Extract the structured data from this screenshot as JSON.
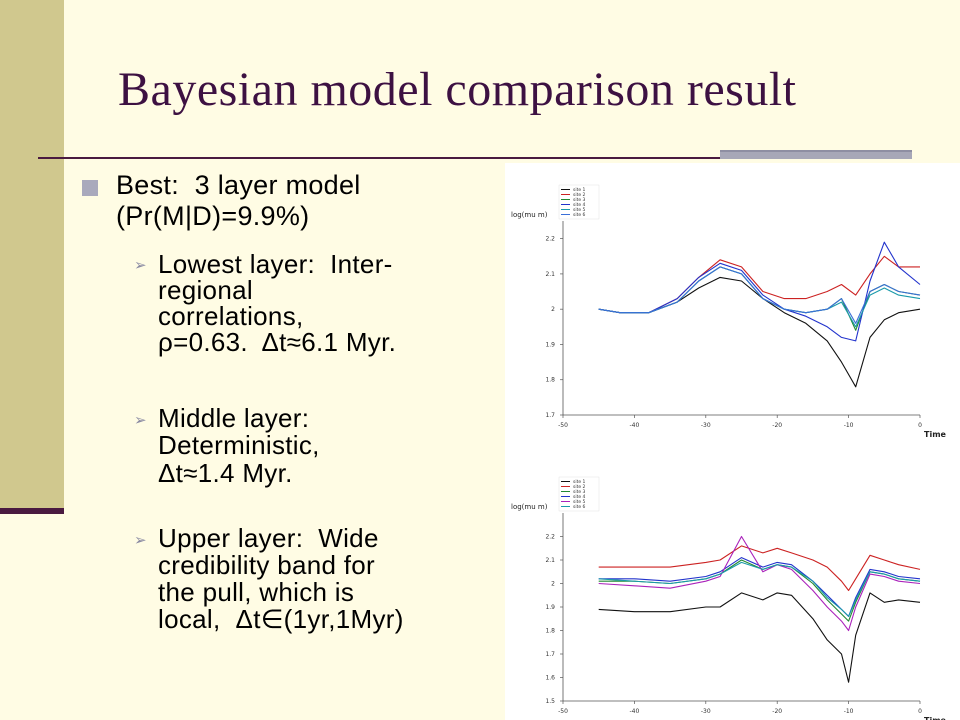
{
  "slide": {
    "title": "Bayesian model comparison result",
    "bullets": [
      {
        "lines": [
          "Best:  3 layer model",
          "(Pr(M|D)=9.9%)"
        ],
        "subbullets": [
          {
            "lines": [
              "Lowest layer:  Inter-",
              "regional",
              "correlations,",
              "ρ=0.63.  Δt≈6.1 Myr."
            ]
          },
          {
            "lines": [
              "Middle layer:",
              "Deterministic,",
              "Δt≈1.4 Myr."
            ]
          },
          {
            "lines": [
              "Upper layer:  Wide",
              "credibility band for",
              "the pull, which is",
              "local,  Δt∈(1yr,1Myr)"
            ]
          }
        ]
      }
    ]
  },
  "chart_data": [
    {
      "type": "line",
      "ylabel": "log(mu m)",
      "xlabel": "Time",
      "x_ticks": [
        "-50",
        "-40",
        "-30",
        "-20",
        "-10",
        "0"
      ],
      "y_ticks": [
        "2.2",
        "2.1",
        "2",
        "1.9",
        "1.8",
        "1.7"
      ],
      "xlim": [
        -50,
        0
      ],
      "ylim": [
        1.7,
        2.25
      ],
      "legend_position": "top-left",
      "series": [
        {
          "name": "site 1",
          "color": "#111111",
          "x": [
            -45,
            -42,
            -38,
            -34,
            -31,
            -28,
            -25,
            -22,
            -19,
            -16,
            -13,
            -11,
            -9,
            -7,
            -5,
            -3,
            0
          ],
          "y": [
            2.0,
            1.99,
            1.99,
            2.02,
            2.06,
            2.09,
            2.08,
            2.03,
            1.99,
            1.96,
            1.91,
            1.85,
            1.78,
            1.92,
            1.97,
            1.99,
            2.0
          ]
        },
        {
          "name": "site 2",
          "color": "#cc2222",
          "x": [
            -45,
            -42,
            -38,
            -34,
            -31,
            -28,
            -25,
            -22,
            -19,
            -16,
            -13,
            -11,
            -9,
            -7,
            -5,
            -3,
            0
          ],
          "y": [
            2.0,
            1.99,
            1.99,
            2.03,
            2.09,
            2.14,
            2.12,
            2.05,
            2.03,
            2.03,
            2.05,
            2.07,
            2.04,
            2.1,
            2.15,
            2.12,
            2.12
          ]
        },
        {
          "name": "site 3",
          "color": "#228833",
          "x": [
            -45,
            -42,
            -38,
            -34,
            -31,
            -28,
            -25,
            -22,
            -19,
            -16,
            -13,
            -11,
            -9,
            -7,
            -5,
            -3,
            0
          ],
          "y": [
            2.0,
            1.99,
            1.99,
            2.02,
            2.08,
            2.12,
            2.1,
            2.03,
            2.0,
            1.99,
            2.0,
            2.03,
            1.94,
            2.05,
            2.07,
            2.05,
            2.04
          ]
        },
        {
          "name": "site 4",
          "color": "#2233cc",
          "x": [
            -45,
            -42,
            -38,
            -34,
            -31,
            -28,
            -25,
            -22,
            -19,
            -16,
            -13,
            -11,
            -9,
            -7,
            -5,
            -3,
            0
          ],
          "y": [
            2.0,
            1.99,
            1.99,
            2.03,
            2.09,
            2.13,
            2.11,
            2.04,
            2.0,
            1.98,
            1.95,
            1.92,
            1.91,
            2.08,
            2.19,
            2.12,
            2.07
          ]
        },
        {
          "name": "site 5",
          "color": "#1a9aaa",
          "x": [
            -45,
            -42,
            -38,
            -34,
            -31,
            -28,
            -25,
            -22,
            -19,
            -16,
            -13,
            -11,
            -9,
            -7,
            -5,
            -3,
            0
          ],
          "y": [
            2.0,
            1.99,
            1.99,
            2.02,
            2.08,
            2.12,
            2.1,
            2.03,
            2.0,
            1.99,
            2.0,
            2.02,
            1.95,
            2.04,
            2.06,
            2.04,
            2.03
          ]
        },
        {
          "name": "site 6",
          "color": "#3a6fd8",
          "x": [
            -45,
            -42,
            -38,
            -34,
            -31,
            -28,
            -25,
            -22,
            -19,
            -16,
            -13,
            -11,
            -9,
            -7,
            -5,
            -3,
            0
          ],
          "y": [
            2.0,
            1.99,
            1.99,
            2.02,
            2.08,
            2.12,
            2.1,
            2.03,
            2.0,
            1.99,
            2.0,
            2.03,
            1.96,
            2.05,
            2.07,
            2.05,
            2.04
          ]
        }
      ]
    },
    {
      "type": "line",
      "ylabel": "log(mu m)",
      "xlabel": "Time",
      "x_ticks": [
        "-50",
        "-40",
        "-30",
        "-20",
        "-10",
        "0"
      ],
      "y_ticks": [
        "2.2",
        "2.1",
        "2",
        "1.9",
        "1.8",
        "1.7",
        "1.6",
        "1.5"
      ],
      "xlim": [
        -50,
        0
      ],
      "ylim": [
        1.5,
        2.3
      ],
      "legend_position": "top-left",
      "series": [
        {
          "name": "site 1",
          "color": "#111111",
          "x": [
            -45,
            -40,
            -35,
            -30,
            -28,
            -25,
            -22,
            -20,
            -18,
            -15,
            -13,
            -11,
            -10,
            -9,
            -7,
            -5,
            -3,
            0
          ],
          "y": [
            1.89,
            1.88,
            1.88,
            1.9,
            1.9,
            1.96,
            1.93,
            1.96,
            1.95,
            1.85,
            1.76,
            1.7,
            1.58,
            1.78,
            1.96,
            1.92,
            1.93,
            1.92
          ]
        },
        {
          "name": "site 2",
          "color": "#cc2222",
          "x": [
            -45,
            -40,
            -35,
            -30,
            -28,
            -25,
            -22,
            -20,
            -18,
            -15,
            -13,
            -11,
            -10,
            -9,
            -7,
            -5,
            -3,
            0
          ],
          "y": [
            2.07,
            2.07,
            2.07,
            2.09,
            2.1,
            2.16,
            2.13,
            2.15,
            2.13,
            2.1,
            2.07,
            2.01,
            1.97,
            2.02,
            2.12,
            2.1,
            2.08,
            2.06
          ]
        },
        {
          "name": "site 3",
          "color": "#228833",
          "x": [
            -45,
            -40,
            -35,
            -30,
            -28,
            -25,
            -22,
            -20,
            -18,
            -15,
            -13,
            -11,
            -10,
            -9,
            -7,
            -5,
            -3,
            0
          ],
          "y": [
            2.01,
            2.01,
            2.0,
            2.02,
            2.04,
            2.1,
            2.06,
            2.08,
            2.07,
            2.0,
            1.93,
            1.87,
            1.84,
            1.92,
            2.05,
            2.04,
            2.02,
            2.01
          ]
        },
        {
          "name": "site 4",
          "color": "#2233cc",
          "x": [
            -45,
            -40,
            -35,
            -30,
            -28,
            -25,
            -22,
            -20,
            -18,
            -15,
            -13,
            -11,
            -10,
            -9,
            -7,
            -5,
            -3,
            0
          ],
          "y": [
            2.02,
            2.02,
            2.01,
            2.03,
            2.05,
            2.11,
            2.07,
            2.09,
            2.08,
            2.01,
            1.95,
            1.89,
            1.86,
            1.94,
            2.06,
            2.05,
            2.03,
            2.02
          ]
        },
        {
          "name": "site 5",
          "color": "#aa22bb",
          "x": [
            -45,
            -40,
            -35,
            -30,
            -28,
            -25,
            -22,
            -20,
            -18,
            -15,
            -13,
            -11,
            -10,
            -9,
            -7,
            -5,
            -3,
            0
          ],
          "y": [
            2.0,
            1.99,
            1.98,
            2.01,
            2.03,
            2.2,
            2.05,
            2.08,
            2.06,
            1.97,
            1.9,
            1.84,
            1.8,
            1.9,
            2.04,
            2.03,
            2.01,
            2.0
          ]
        },
        {
          "name": "site 6",
          "color": "#1a9aaa",
          "x": [
            -45,
            -40,
            -35,
            -30,
            -28,
            -25,
            -22,
            -20,
            -18,
            -15,
            -13,
            -11,
            -10,
            -9,
            -7,
            -5,
            -3,
            0
          ],
          "y": [
            2.02,
            2.01,
            2.0,
            2.02,
            2.04,
            2.09,
            2.06,
            2.08,
            2.07,
            2.01,
            1.94,
            1.89,
            1.86,
            1.93,
            2.05,
            2.04,
            2.02,
            2.01
          ]
        }
      ]
    }
  ]
}
